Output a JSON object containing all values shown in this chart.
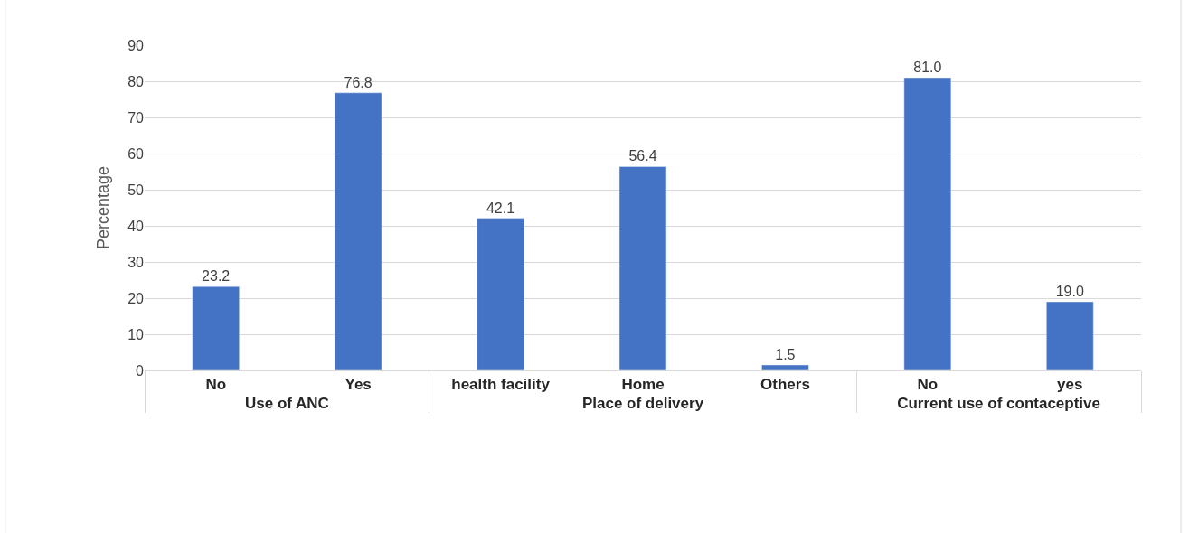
{
  "chart_data": {
    "type": "bar",
    "ylabel": "Percentage",
    "categories": [
      "No",
      "Yes",
      "health facility",
      "Home",
      "Others",
      "No",
      "yes"
    ],
    "annotations": [
      "Use of ANC",
      "Place of delivery",
      "Current use of contaceptive"
    ],
    "values": [
      23.2,
      76.8,
      42.1,
      56.4,
      1.5,
      81.0,
      19.0
    ],
    "color": "#4472c4",
    "ylim": [
      0,
      90
    ],
    "yticks": [
      0,
      10,
      20,
      30,
      40,
      50,
      60,
      70,
      80,
      90
    ],
    "value_labels": [
      "23.2",
      "76.8",
      "42.1",
      "56.4",
      "1.5",
      "81.0",
      "19.0"
    ],
    "grid": "y"
  }
}
